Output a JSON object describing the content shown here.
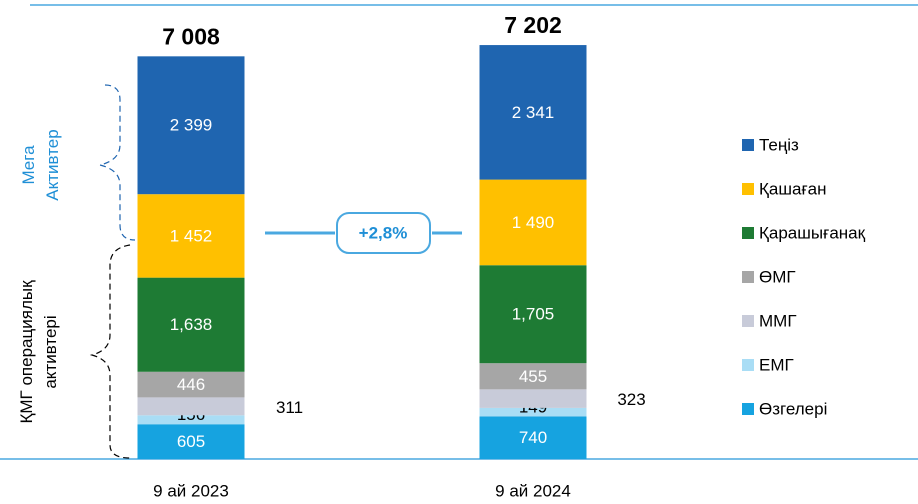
{
  "chart_data": {
    "type": "stacked_bar",
    "categories": [
      "9 ай 2023",
      "9 ай 2024"
    ],
    "series": [
      {
        "name": "Өзгелері",
        "color": "#16a3e0",
        "values": [
          605,
          740
        ],
        "value_labels": [
          "605",
          "740"
        ]
      },
      {
        "name": "ЕМГ",
        "color": "#a9ddf5",
        "values": [
          156,
          149
        ],
        "value_labels": [
          "156",
          "149"
        ]
      },
      {
        "name": "ММГ",
        "color": "#c8cbd9",
        "values": [
          311,
          323
        ],
        "value_labels": [
          "311",
          "323"
        ]
      },
      {
        "name": "ӨМГ",
        "color": "#a6a6a6",
        "values": [
          446,
          455
        ],
        "value_labels": [
          "446",
          "455"
        ]
      },
      {
        "name": "Қарашығанақ",
        "color": "#1e7b34",
        "values": [
          1638,
          1705
        ],
        "value_labels": [
          "1,638",
          "1,705"
        ]
      },
      {
        "name": "Қашаған",
        "color": "#ffc000",
        "values": [
          1452,
          1490
        ],
        "value_labels": [
          "1 452",
          "1 490"
        ]
      },
      {
        "name": "Теңіз",
        "color": "#1f65b0",
        "values": [
          2399,
          2341
        ],
        "value_labels": [
          "2 399",
          "2 341"
        ]
      }
    ],
    "totals": [
      7008,
      7202
    ],
    "total_labels": [
      "7 008",
      "7 202"
    ],
    "ylim": [
      0,
      7500
    ],
    "annotations": {
      "change": "+2,8%",
      "mega": "Мега Активтер",
      "operational": "ҚМГ операциялық активтері"
    },
    "legend": "right"
  }
}
